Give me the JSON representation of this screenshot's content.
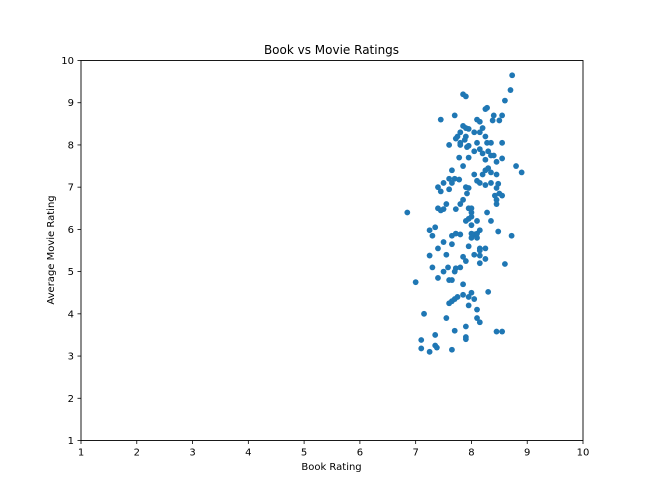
{
  "chart_data": {
    "type": "scatter",
    "title": "Book vs Movie Ratings",
    "xlabel": "Book Rating",
    "ylabel": "Average Movie Rating",
    "xlim": [
      1,
      10
    ],
    "ylim": [
      1,
      10
    ],
    "xticks": [
      "1",
      "2",
      "3",
      "4",
      "5",
      "6",
      "7",
      "8",
      "9",
      "10"
    ],
    "yticks": [
      "1",
      "2",
      "3",
      "4",
      "5",
      "6",
      "7",
      "8",
      "9",
      "10"
    ],
    "grid": false,
    "legend": "none",
    "marker_color": "#1f77b4",
    "points": [
      [
        8.73,
        9.65
      ],
      [
        8.7,
        9.3
      ],
      [
        8.6,
        9.05
      ],
      [
        7.85,
        9.2
      ],
      [
        7.9,
        9.15
      ],
      [
        8.25,
        8.85
      ],
      [
        8.28,
        8.88
      ],
      [
        7.7,
        8.7
      ],
      [
        8.4,
        8.7
      ],
      [
        8.55,
        8.7
      ],
      [
        7.45,
        8.6
      ],
      [
        8.1,
        8.6
      ],
      [
        8.38,
        8.58
      ],
      [
        8.5,
        8.58
      ],
      [
        8.15,
        8.55
      ],
      [
        7.85,
        8.45
      ],
      [
        7.9,
        8.4
      ],
      [
        8.2,
        8.4
      ],
      [
        7.95,
        8.38
      ],
      [
        7.8,
        8.3
      ],
      [
        8.05,
        8.3
      ],
      [
        8.15,
        8.3
      ],
      [
        7.75,
        8.2
      ],
      [
        7.9,
        8.2
      ],
      [
        7.72,
        8.15
      ],
      [
        7.88,
        8.12
      ],
      [
        8.25,
        8.2
      ],
      [
        7.8,
        8.05
      ],
      [
        8.1,
        8.05
      ],
      [
        8.28,
        8.05
      ],
      [
        8.35,
        8.05
      ],
      [
        8.55,
        8.05
      ],
      [
        7.6,
        8.0
      ],
      [
        7.8,
        8.0
      ],
      [
        7.95,
        7.98
      ],
      [
        7.92,
        7.95
      ],
      [
        8.15,
        7.9
      ],
      [
        8.05,
        7.85
      ],
      [
        8.3,
        7.85
      ],
      [
        8.2,
        7.8
      ],
      [
        8.35,
        7.75
      ],
      [
        8.4,
        7.75
      ],
      [
        7.95,
        7.7
      ],
      [
        7.78,
        7.7
      ],
      [
        8.25,
        7.65
      ],
      [
        8.55,
        7.68
      ],
      [
        8.45,
        7.6
      ],
      [
        7.85,
        7.5
      ],
      [
        8.3,
        7.45
      ],
      [
        8.8,
        7.5
      ],
      [
        7.65,
        7.4
      ],
      [
        8.25,
        7.4
      ],
      [
        8.35,
        7.35
      ],
      [
        8.05,
        7.3
      ],
      [
        8.2,
        7.3
      ],
      [
        8.45,
        7.3
      ],
      [
        8.9,
        7.35
      ],
      [
        7.6,
        7.2
      ],
      [
        7.7,
        7.2
      ],
      [
        7.78,
        7.18
      ],
      [
        8.1,
        7.15
      ],
      [
        7.5,
        7.1
      ],
      [
        7.65,
        7.1
      ],
      [
        8.15,
        7.1
      ],
      [
        8.35,
        7.1
      ],
      [
        8.48,
        7.08
      ],
      [
        8.25,
        7.05
      ],
      [
        7.4,
        7.0
      ],
      [
        7.9,
        7.0
      ],
      [
        7.95,
        6.98
      ],
      [
        8.45,
        6.98
      ],
      [
        7.6,
        6.95
      ],
      [
        7.45,
        6.9
      ],
      [
        7.92,
        6.85
      ],
      [
        8.5,
        6.85
      ],
      [
        8.42,
        6.8
      ],
      [
        8.55,
        6.8
      ],
      [
        7.85,
        6.7
      ],
      [
        8.45,
        6.7
      ],
      [
        7.8,
        6.6
      ],
      [
        7.55,
        6.6
      ],
      [
        8.45,
        6.6
      ],
      [
        7.4,
        6.5
      ],
      [
        7.5,
        6.48
      ],
      [
        7.72,
        6.48
      ],
      [
        7.95,
        6.5
      ],
      [
        8.0,
        6.5
      ],
      [
        7.45,
        6.45
      ],
      [
        8.0,
        6.4
      ],
      [
        8.28,
        6.4
      ],
      [
        6.85,
        6.4
      ],
      [
        8.0,
        6.3
      ],
      [
        7.95,
        6.25
      ],
      [
        7.9,
        6.2
      ],
      [
        8.1,
        6.2
      ],
      [
        8.35,
        6.2
      ],
      [
        8.0,
        6.1
      ],
      [
        7.35,
        6.05
      ],
      [
        7.25,
        5.98
      ],
      [
        8.15,
        5.98
      ],
      [
        8.48,
        5.95
      ],
      [
        7.72,
        5.9
      ],
      [
        7.8,
        5.88
      ],
      [
        8.0,
        5.9
      ],
      [
        8.05,
        5.88
      ],
      [
        8.1,
        5.9
      ],
      [
        7.3,
        5.85
      ],
      [
        7.65,
        5.85
      ],
      [
        8.0,
        5.8
      ],
      [
        8.72,
        5.85
      ],
      [
        8.1,
        5.8
      ],
      [
        7.5,
        5.7
      ],
      [
        7.65,
        5.65
      ],
      [
        7.95,
        5.6
      ],
      [
        8.15,
        5.55
      ],
      [
        8.15,
        5.5
      ],
      [
        7.4,
        5.55
      ],
      [
        8.25,
        5.55
      ],
      [
        7.55,
        5.4
      ],
      [
        8.05,
        5.4
      ],
      [
        8.15,
        5.38
      ],
      [
        7.25,
        5.38
      ],
      [
        7.85,
        5.35
      ],
      [
        8.25,
        5.3
      ],
      [
        7.9,
        5.25
      ],
      [
        8.15,
        5.2
      ],
      [
        8.6,
        5.18
      ],
      [
        7.3,
        5.1
      ],
      [
        7.58,
        5.1
      ],
      [
        7.72,
        5.08
      ],
      [
        7.8,
        5.1
      ],
      [
        7.7,
        5.0
      ],
      [
        7.5,
        5.0
      ],
      [
        7.4,
        4.85
      ],
      [
        7.6,
        4.8
      ],
      [
        7.65,
        4.8
      ],
      [
        7.0,
        4.75
      ],
      [
        7.85,
        4.7
      ],
      [
        8.3,
        4.52
      ],
      [
        8.0,
        4.5
      ],
      [
        7.85,
        4.45
      ],
      [
        7.95,
        4.4
      ],
      [
        7.75,
        4.4
      ],
      [
        7.7,
        4.35
      ],
      [
        8.05,
        4.35
      ],
      [
        7.65,
        4.3
      ],
      [
        7.6,
        4.25
      ],
      [
        7.95,
        4.2
      ],
      [
        8.1,
        4.1
      ],
      [
        7.15,
        4.0
      ],
      [
        7.55,
        3.9
      ],
      [
        8.1,
        3.9
      ],
      [
        8.15,
        3.8
      ],
      [
        7.9,
        3.7
      ],
      [
        7.7,
        3.6
      ],
      [
        8.45,
        3.58
      ],
      [
        8.55,
        3.58
      ],
      [
        7.35,
        3.5
      ],
      [
        7.9,
        3.45
      ],
      [
        7.9,
        3.4
      ],
      [
        7.1,
        3.38
      ],
      [
        7.35,
        3.25
      ],
      [
        7.38,
        3.2
      ],
      [
        7.1,
        3.18
      ],
      [
        7.65,
        3.15
      ],
      [
        7.25,
        3.1
      ]
    ]
  }
}
